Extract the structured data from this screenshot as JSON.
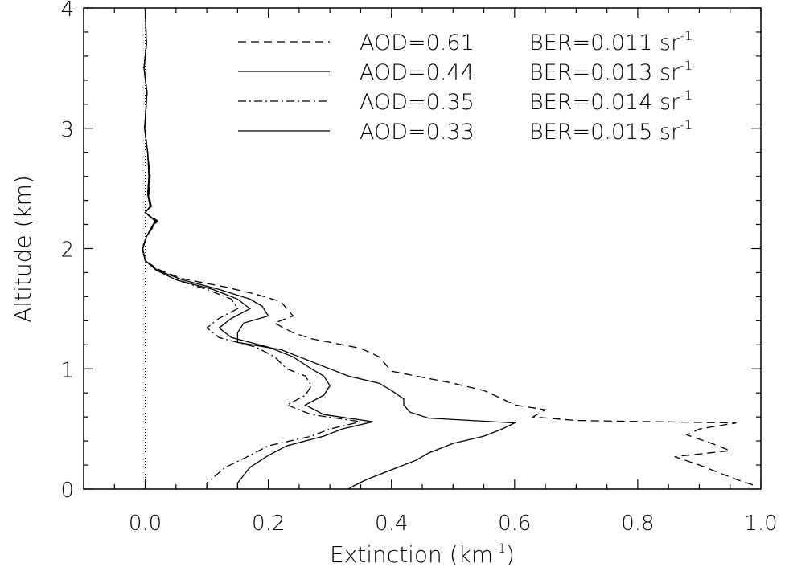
{
  "chart_data": {
    "type": "line",
    "title": "",
    "xlabel": "Extinction (km",
    "xlabel_sup": "-1",
    "xlabel_close": ")",
    "ylabel": "Altitude (km)",
    "xlim": [
      -0.1,
      1.0
    ],
    "ylim": [
      0,
      4
    ],
    "x_ticks": [
      "0.0",
      "0.2",
      "0.4",
      "0.6",
      "0.8",
      "1.0"
    ],
    "y_ticks": [
      "0",
      "1",
      "2",
      "3",
      "4"
    ],
    "grid": false,
    "legend_position": "top-right",
    "reference_line": {
      "x": 0.0,
      "style": "dotted"
    },
    "series": [
      {
        "name": "AOD=0.61 BER=0.011 sr-1",
        "aod": "AOD=0.61",
        "ber": "BER=0.011 sr",
        "ber_sup": "-1",
        "dash": "10,6",
        "points": [
          [
            0.0,
            4.0
          ],
          [
            0.002,
            3.7
          ],
          [
            -0.002,
            3.5
          ],
          [
            0.003,
            3.3
          ],
          [
            -0.001,
            3.0
          ],
          [
            0.004,
            2.8
          ],
          [
            0.008,
            2.6
          ],
          [
            0.006,
            2.45
          ],
          [
            0.01,
            2.35
          ],
          [
            0.0,
            2.3
          ],
          [
            0.02,
            2.23
          ],
          [
            0.002,
            2.1
          ],
          [
            -0.005,
            2.0
          ],
          [
            0.0,
            1.9
          ],
          [
            0.02,
            1.83
          ],
          [
            0.06,
            1.75
          ],
          [
            0.13,
            1.68
          ],
          [
            0.18,
            1.62
          ],
          [
            0.22,
            1.56
          ],
          [
            0.23,
            1.5
          ],
          [
            0.24,
            1.44
          ],
          [
            0.21,
            1.38
          ],
          [
            0.24,
            1.3
          ],
          [
            0.27,
            1.25
          ],
          [
            0.35,
            1.17
          ],
          [
            0.38,
            1.1
          ],
          [
            0.39,
            1.04
          ],
          [
            0.4,
            0.98
          ],
          [
            0.44,
            0.94
          ],
          [
            0.5,
            0.88
          ],
          [
            0.55,
            0.82
          ],
          [
            0.58,
            0.75
          ],
          [
            0.6,
            0.7
          ],
          [
            0.65,
            0.66
          ],
          [
            0.63,
            0.6
          ],
          [
            0.7,
            0.57
          ],
          [
            0.96,
            0.55
          ],
          [
            0.9,
            0.5
          ],
          [
            0.88,
            0.45
          ],
          [
            0.92,
            0.38
          ],
          [
            0.95,
            0.32
          ],
          [
            0.86,
            0.27
          ],
          [
            0.9,
            0.2
          ],
          [
            0.93,
            0.14
          ],
          [
            0.96,
            0.08
          ],
          [
            0.99,
            0.03
          ]
        ]
      },
      {
        "name": "AOD=0.44 BER=0.013 sr-1",
        "aod": "AOD=0.44",
        "ber": "BER=0.013 sr",
        "ber_sup": "-1",
        "dash": "",
        "points": [
          [
            0.0,
            4.0
          ],
          [
            0.002,
            3.7
          ],
          [
            -0.002,
            3.5
          ],
          [
            0.003,
            3.3
          ],
          [
            -0.001,
            3.0
          ],
          [
            0.004,
            2.8
          ],
          [
            0.007,
            2.6
          ],
          [
            0.005,
            2.45
          ],
          [
            0.009,
            2.35
          ],
          [
            0.0,
            2.3
          ],
          [
            0.018,
            2.23
          ],
          [
            0.002,
            2.1
          ],
          [
            -0.004,
            2.0
          ],
          [
            0.0,
            1.9
          ],
          [
            0.02,
            1.82
          ],
          [
            0.06,
            1.74
          ],
          [
            0.12,
            1.66
          ],
          [
            0.17,
            1.58
          ],
          [
            0.19,
            1.52
          ],
          [
            0.2,
            1.44
          ],
          [
            0.16,
            1.38
          ],
          [
            0.15,
            1.3
          ],
          [
            0.15,
            1.22
          ],
          [
            0.22,
            1.16
          ],
          [
            0.26,
            1.08
          ],
          [
            0.3,
            1.0
          ],
          [
            0.33,
            0.94
          ],
          [
            0.38,
            0.88
          ],
          [
            0.4,
            0.82
          ],
          [
            0.42,
            0.75
          ],
          [
            0.42,
            0.7
          ],
          [
            0.43,
            0.64
          ],
          [
            0.46,
            0.59
          ],
          [
            0.6,
            0.55
          ],
          [
            0.58,
            0.5
          ],
          [
            0.55,
            0.44
          ],
          [
            0.5,
            0.38
          ],
          [
            0.46,
            0.3
          ],
          [
            0.44,
            0.24
          ],
          [
            0.41,
            0.18
          ],
          [
            0.38,
            0.12
          ],
          [
            0.36,
            0.08
          ],
          [
            0.34,
            0.03
          ],
          [
            0.33,
            0.0
          ]
        ]
      },
      {
        "name": "AOD=0.35 BER=0.014 sr-1",
        "aod": "AOD=0.35",
        "ber": "BER=0.014 sr",
        "ber_sup": "-1",
        "dash": "10,4,2,4",
        "points": [
          [
            0.0,
            4.0
          ],
          [
            0.002,
            3.7
          ],
          [
            -0.002,
            3.5
          ],
          [
            0.003,
            3.3
          ],
          [
            -0.001,
            3.0
          ],
          [
            0.004,
            2.8
          ],
          [
            0.006,
            2.6
          ],
          [
            0.004,
            2.45
          ],
          [
            0.008,
            2.35
          ],
          [
            0.0,
            2.3
          ],
          [
            0.016,
            2.23
          ],
          [
            0.002,
            2.1
          ],
          [
            -0.004,
            2.0
          ],
          [
            0.0,
            1.9
          ],
          [
            0.018,
            1.82
          ],
          [
            0.05,
            1.74
          ],
          [
            0.1,
            1.66
          ],
          [
            0.14,
            1.58
          ],
          [
            0.15,
            1.5
          ],
          [
            0.12,
            1.42
          ],
          [
            0.1,
            1.34
          ],
          [
            0.12,
            1.26
          ],
          [
            0.18,
            1.18
          ],
          [
            0.21,
            1.1
          ],
          [
            0.23,
            1.0
          ],
          [
            0.26,
            0.94
          ],
          [
            0.27,
            0.86
          ],
          [
            0.26,
            0.78
          ],
          [
            0.23,
            0.7
          ],
          [
            0.27,
            0.62
          ],
          [
            0.35,
            0.56
          ],
          [
            0.3,
            0.5
          ],
          [
            0.27,
            0.44
          ],
          [
            0.2,
            0.36
          ],
          [
            0.17,
            0.28
          ],
          [
            0.13,
            0.18
          ],
          [
            0.1,
            0.05
          ],
          [
            0.1,
            0.0
          ]
        ]
      },
      {
        "name": "AOD=0.33 BER=0.015 sr-1",
        "aod": "AOD=0.33",
        "ber": "BER=0.015 sr",
        "ber_sup": "-1",
        "dash": "",
        "points": [
          [
            0.0,
            4.0
          ],
          [
            0.002,
            3.7
          ],
          [
            -0.002,
            3.5
          ],
          [
            0.003,
            3.3
          ],
          [
            -0.001,
            3.0
          ],
          [
            0.004,
            2.8
          ],
          [
            0.006,
            2.6
          ],
          [
            0.004,
            2.45
          ],
          [
            0.008,
            2.35
          ],
          [
            0.0,
            2.3
          ],
          [
            0.016,
            2.23
          ],
          [
            0.002,
            2.1
          ],
          [
            -0.004,
            2.0
          ],
          [
            0.0,
            1.9
          ],
          [
            0.018,
            1.82
          ],
          [
            0.05,
            1.74
          ],
          [
            0.11,
            1.66
          ],
          [
            0.15,
            1.58
          ],
          [
            0.17,
            1.5
          ],
          [
            0.14,
            1.42
          ],
          [
            0.12,
            1.34
          ],
          [
            0.14,
            1.26
          ],
          [
            0.2,
            1.18
          ],
          [
            0.24,
            1.1
          ],
          [
            0.27,
            1.0
          ],
          [
            0.29,
            0.94
          ],
          [
            0.3,
            0.86
          ],
          [
            0.29,
            0.78
          ],
          [
            0.26,
            0.7
          ],
          [
            0.29,
            0.62
          ],
          [
            0.37,
            0.56
          ],
          [
            0.32,
            0.5
          ],
          [
            0.29,
            0.44
          ],
          [
            0.23,
            0.36
          ],
          [
            0.2,
            0.28
          ],
          [
            0.17,
            0.18
          ],
          [
            0.15,
            0.05
          ],
          [
            0.15,
            0.0
          ]
        ]
      }
    ]
  }
}
